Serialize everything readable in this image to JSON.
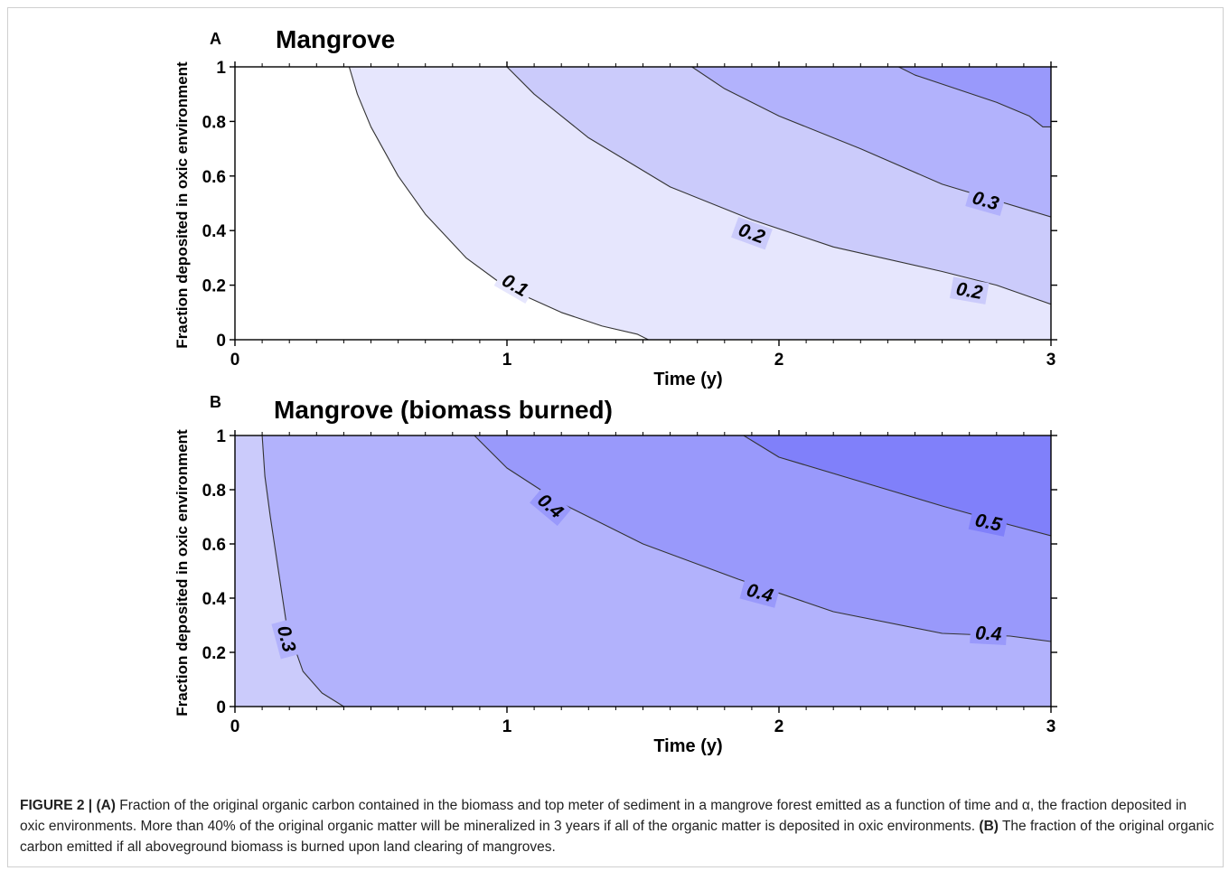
{
  "chart_data": [
    {
      "type": "contour",
      "panel_label": "A",
      "title": "Mangrove",
      "xlabel": "Time (y)",
      "ylabel": "Fraction deposited in oxic environment",
      "xlim": [
        0,
        3
      ],
      "ylim": [
        0,
        1
      ],
      "xticks": [
        "0",
        "1",
        "2",
        "3"
      ],
      "yticks": [
        "0",
        "0.2",
        "0.4",
        "0.6",
        "0.8",
        "1"
      ],
      "fill_colors": [
        "#ffffff",
        "#e6e6fd",
        "#cbcbfb",
        "#b2b2fc",
        "#9999fb"
      ],
      "contours": [
        {
          "level": 0.1,
          "points": [
            [
              0.42,
              1.0
            ],
            [
              0.45,
              0.9
            ],
            [
              0.5,
              0.78
            ],
            [
              0.6,
              0.6
            ],
            [
              0.7,
              0.46
            ],
            [
              0.85,
              0.3
            ],
            [
              1.0,
              0.19
            ],
            [
              1.2,
              0.1
            ],
            [
              1.35,
              0.05
            ],
            [
              1.48,
              0.02
            ],
            [
              1.52,
              0.0
            ]
          ]
        },
        {
          "level": 0.2,
          "points": [
            [
              1.0,
              1.0
            ],
            [
              1.1,
              0.9
            ],
            [
              1.3,
              0.74
            ],
            [
              1.6,
              0.56
            ],
            [
              1.9,
              0.44
            ],
            [
              2.2,
              0.34
            ],
            [
              2.6,
              0.25
            ],
            [
              2.8,
              0.2
            ],
            [
              3.0,
              0.13
            ]
          ]
        },
        {
          "level": 0.3,
          "points": [
            [
              1.68,
              1.0
            ],
            [
              1.8,
              0.92
            ],
            [
              2.0,
              0.82
            ],
            [
              2.3,
              0.7
            ],
            [
              2.6,
              0.57
            ],
            [
              2.8,
              0.51
            ],
            [
              3.0,
              0.45
            ]
          ]
        },
        {
          "level": 0.4,
          "points": [
            [
              2.44,
              1.0
            ],
            [
              2.5,
              0.97
            ],
            [
              2.65,
              0.92
            ],
            [
              2.8,
              0.87
            ],
            [
              2.92,
              0.82
            ],
            [
              2.97,
              0.78
            ],
            [
              3.0,
              0.78
            ]
          ]
        }
      ],
      "contour_labels": [
        {
          "text": "0.1",
          "x": 1.03,
          "y": 0.2,
          "angle": 30
        },
        {
          "text": "0.2",
          "x": 1.9,
          "y": 0.39,
          "angle": 20
        },
        {
          "text": "0.2",
          "x": 2.7,
          "y": 0.18,
          "angle": 10
        },
        {
          "text": "0.3",
          "x": 2.76,
          "y": 0.51,
          "angle": 16
        }
      ]
    },
    {
      "type": "contour",
      "panel_label": "B",
      "title": "Mangrove (biomass burned)",
      "xlabel": "Time (y)",
      "ylabel": "Fraction deposited in oxic environment",
      "xlim": [
        0,
        3
      ],
      "ylim": [
        0,
        1
      ],
      "xticks": [
        "0",
        "1",
        "2",
        "3"
      ],
      "yticks": [
        "0",
        "0.2",
        "0.4",
        "0.6",
        "0.8",
        "1"
      ],
      "fill_colors": [
        "#cbcbfb",
        "#b2b2fc",
        "#9999fb",
        "#8080fa"
      ],
      "contours": [
        {
          "level": 0.3,
          "points": [
            [
              0.1,
              1.0
            ],
            [
              0.11,
              0.85
            ],
            [
              0.13,
              0.7
            ],
            [
              0.16,
              0.5
            ],
            [
              0.19,
              0.3
            ],
            [
              0.25,
              0.13
            ],
            [
              0.32,
              0.05
            ],
            [
              0.4,
              0.0
            ]
          ]
        },
        {
          "level": 0.4,
          "points": [
            [
              0.88,
              1.0
            ],
            [
              1.0,
              0.88
            ],
            [
              1.2,
              0.75
            ],
            [
              1.5,
              0.6
            ],
            [
              1.85,
              0.47
            ],
            [
              2.2,
              0.35
            ],
            [
              2.6,
              0.27
            ],
            [
              2.85,
              0.26
            ],
            [
              3.0,
              0.24
            ]
          ]
        },
        {
          "level": 0.5,
          "points": [
            [
              1.87,
              1.0
            ],
            [
              2.0,
              0.92
            ],
            [
              2.3,
              0.83
            ],
            [
              2.6,
              0.74
            ],
            [
              2.85,
              0.67
            ],
            [
              3.0,
              0.63
            ]
          ]
        }
      ],
      "contour_labels": [
        {
          "text": "0.3",
          "x": 0.19,
          "y": 0.25,
          "angle": 75
        },
        {
          "text": "0.4",
          "x": 1.16,
          "y": 0.74,
          "angle": 40
        },
        {
          "text": "0.4",
          "x": 1.93,
          "y": 0.42,
          "angle": 15
        },
        {
          "text": "0.4",
          "x": 2.77,
          "y": 0.27,
          "angle": 3
        },
        {
          "text": "0.5",
          "x": 2.77,
          "y": 0.68,
          "angle": 12
        }
      ]
    }
  ],
  "caption": {
    "fig_label": "FIGURE 2 |",
    "a_label": "(A)",
    "a_text": " Fraction of the original organic carbon contained in the biomass and top meter of sediment in a mangrove forest emitted as a function of time and α, the fraction deposited in oxic environments. More than 40% of the original organic matter will be mineralized in 3 years if all of the organic matter is deposited in oxic environments. ",
    "b_label": "(B)",
    "b_text": " The fraction of the original organic carbon emitted if all aboveground biomass is burned upon land clearing of mangroves."
  }
}
